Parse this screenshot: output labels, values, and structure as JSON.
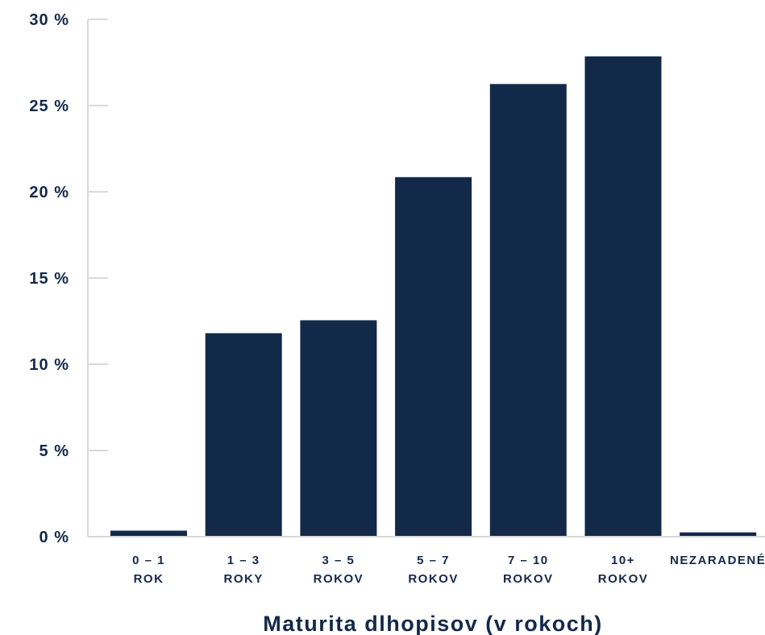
{
  "colors": {
    "bar": "#13294a",
    "text": "#13294a",
    "axis": "#d9d9d9"
  },
  "chart_data": {
    "type": "bar",
    "categories": [
      [
        "0 – 1",
        "ROK"
      ],
      [
        "1 – 3",
        "ROKY"
      ],
      [
        "3 – 5",
        "ROKOV"
      ],
      [
        "5 – 7",
        "ROKOV"
      ],
      [
        "7 – 10",
        "ROKOV"
      ],
      [
        "10+",
        "ROKOV"
      ],
      [
        "NEZARADENÉ"
      ]
    ],
    "values": [
      0.35,
      11.8,
      12.55,
      20.85,
      26.25,
      27.85,
      0.25
    ],
    "yticks": [
      0,
      5,
      10,
      15,
      20,
      25,
      30
    ],
    "ytick_labels": [
      "0 %",
      "5 %",
      "10 %",
      "15 %",
      "20 %",
      "25 %",
      "30 %"
    ],
    "ylim": [
      0,
      30
    ],
    "xlabel": "Maturita dlhopisov (v rokoch)",
    "ylabel": "",
    "title": "",
    "grid": false,
    "legend": "none"
  }
}
